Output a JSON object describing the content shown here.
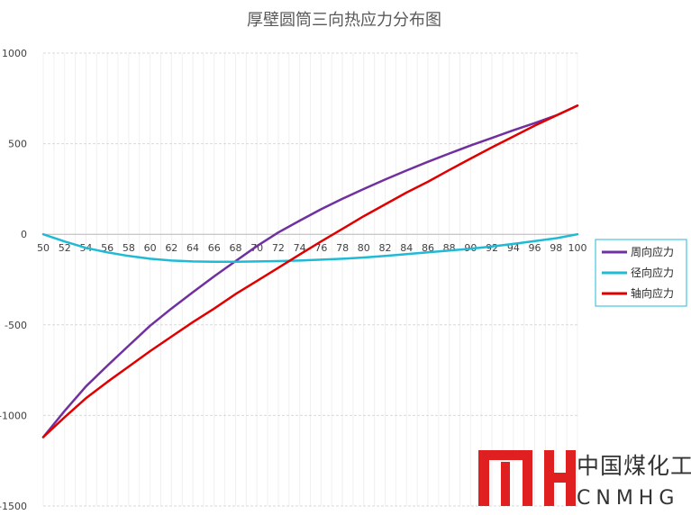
{
  "chart_data": {
    "type": "line",
    "title": "厚壁圆筒三向热应力分布图",
    "xlabel": "",
    "ylabel": "",
    "x": [
      50,
      52,
      54,
      56,
      58,
      60,
      62,
      64,
      66,
      68,
      70,
      72,
      74,
      76,
      78,
      80,
      82,
      84,
      86,
      88,
      90,
      92,
      94,
      96,
      98,
      100
    ],
    "xtick_labels": [
      "50",
      "52",
      "54",
      "56",
      "58",
      "60",
      "62",
      "64",
      "66",
      "68",
      "70",
      "72",
      "74",
      "76",
      "78",
      "80",
      "82",
      "84",
      "86",
      "88",
      "90",
      "92",
      "94",
      "96",
      "98",
      "100"
    ],
    "ylim": [
      -1500,
      1000
    ],
    "yticks": [
      -1500,
      -1000,
      -500,
      0,
      500,
      1000
    ],
    "ytick_labels": [
      "-1500",
      "-1000",
      "-500",
      "0",
      "500",
      "1000"
    ],
    "grid": true,
    "legend_position": "right",
    "series": [
      {
        "name": "周向应力",
        "color": "#7030a0",
        "values": [
          -1120,
          -975,
          -840,
          -725,
          -615,
          -505,
          -410,
          -320,
          -232,
          -148,
          -65,
          10,
          75,
          138,
          196,
          250,
          302,
          352,
          400,
          446,
          490,
          532,
          574,
          614,
          656,
          710
        ]
      },
      {
        "name": "径向应力",
        "color": "#1fbad6",
        "values": [
          0,
          -40,
          -75,
          -100,
          -120,
          -135,
          -145,
          -150,
          -152,
          -152,
          -150,
          -148,
          -145,
          -140,
          -135,
          -128,
          -120,
          -110,
          -100,
          -90,
          -80,
          -67,
          -53,
          -38,
          -22,
          0
        ]
      },
      {
        "name": "轴向应力",
        "color": "#e00000",
        "values": [
          -1120,
          -1010,
          -905,
          -815,
          -730,
          -645,
          -565,
          -485,
          -410,
          -330,
          -258,
          -185,
          -112,
          -40,
          30,
          100,
          165,
          230,
          290,
          355,
          418,
          480,
          540,
          600,
          655,
          710
        ]
      }
    ]
  },
  "logo": {
    "mark": "MH",
    "text_cn": "中国煤化工",
    "text_en": "CNMHG",
    "color_mark": "#e02020",
    "color_text": "#333333"
  }
}
